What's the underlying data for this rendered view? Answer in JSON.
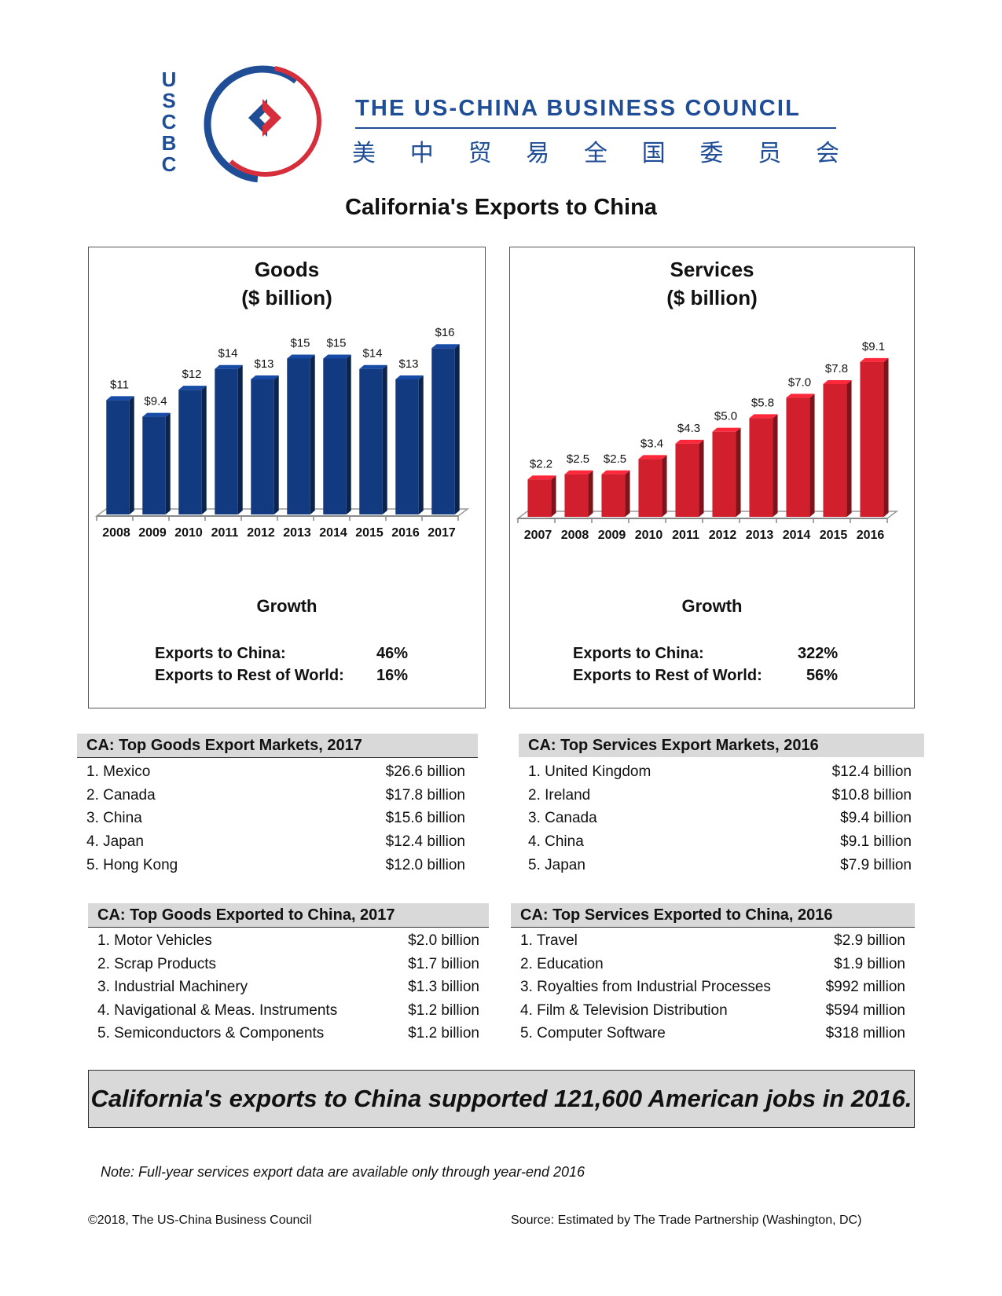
{
  "header": {
    "logo_letters": [
      "U",
      "S",
      "C",
      "B",
      "C"
    ],
    "org_name": "THE US-CHINA BUSINESS COUNCIL",
    "org_name_cn": [
      "美",
      "中",
      "贸",
      "易",
      "全",
      "国",
      "委",
      "员",
      "会"
    ],
    "colors": {
      "brand_blue": "#1f4e96",
      "brand_red": "#d62e3a"
    }
  },
  "page_title": "California's Exports to China",
  "goods_panel": {
    "title_line1": "Goods",
    "title_line2": "($ billion)",
    "growth_heading": "Growth",
    "growth": [
      {
        "label": "Exports to China:",
        "value": "46%"
      },
      {
        "label": "Exports to Rest of World:",
        "value": "16%"
      }
    ]
  },
  "services_panel": {
    "title_line1": "Services",
    "title_line2": "($ billion)",
    "growth_heading": "Growth",
    "growth": [
      {
        "label": "Exports to China:",
        "value": "322%"
      },
      {
        "label": "Exports to Rest of World:",
        "value": "56%"
      }
    ]
  },
  "chart_data": [
    {
      "id": "goods",
      "type": "bar",
      "title": "Goods",
      "ylabel": "($ billion)",
      "categories": [
        "2008",
        "2009",
        "2010",
        "2011",
        "2012",
        "2013",
        "2014",
        "2015",
        "2016",
        "2017"
      ],
      "values": [
        11,
        9.4,
        12,
        14,
        13,
        15,
        15,
        14,
        13,
        16
      ],
      "data_labels": [
        "$11",
        "$9.4",
        "$12",
        "$14",
        "$13",
        "$15",
        "$15",
        "$14",
        "$13",
        "$16"
      ],
      "ylim": [
        0,
        17
      ],
      "grid": false,
      "color": "#123a80"
    },
    {
      "id": "services",
      "type": "bar",
      "title": "Services",
      "ylabel": "($ billion)",
      "categories": [
        "2007",
        "2008",
        "2009",
        "2010",
        "2011",
        "2012",
        "2013",
        "2014",
        "2015",
        "2016"
      ],
      "values": [
        2.2,
        2.5,
        2.5,
        3.4,
        4.3,
        5.0,
        5.8,
        7.0,
        7.8,
        9.1
      ],
      "data_labels": [
        "$2.2",
        "$2.5",
        "$2.5",
        "$3.4",
        "$4.3",
        "$5.0",
        "$5.8",
        "$7.0",
        "$7.8",
        "$9.1"
      ],
      "ylim": [
        0,
        9.6
      ],
      "grid": false,
      "color": "#d21f2d"
    }
  ],
  "tables": {
    "goods_markets": {
      "heading": "CA: Top Goods Export Markets, 2017",
      "rows": [
        {
          "name": "1. Mexico",
          "value": "$26.6 billion"
        },
        {
          "name": "2. Canada",
          "value": "$17.8 billion"
        },
        {
          "name": "3. China",
          "value": "$15.6 billion"
        },
        {
          "name": "4. Japan",
          "value": "$12.4 billion"
        },
        {
          "name": "5. Hong Kong",
          "value": "$12.0 billion"
        }
      ]
    },
    "services_markets": {
      "heading": "CA: Top Services Export Markets, 2016",
      "rows": [
        {
          "name": "1. United Kingdom",
          "value": "$12.4 billion"
        },
        {
          "name": "2. Ireland",
          "value": "$10.8 billion"
        },
        {
          "name": "3. Canada",
          "value": "$9.4 billion"
        },
        {
          "name": "4. China",
          "value": "$9.1 billion"
        },
        {
          "name": "5. Japan",
          "value": "$7.9 billion"
        }
      ]
    },
    "goods_exported": {
      "heading": "CA: Top Goods Exported to China, 2017",
      "rows": [
        {
          "name": "1. Motor Vehicles",
          "value": "$2.0 billion"
        },
        {
          "name": "2. Scrap Products",
          "value": "$1.7 billion"
        },
        {
          "name": "3. Industrial Machinery",
          "value": "$1.3 billion"
        },
        {
          "name": "4. Navigational & Meas. Instruments",
          "value": "$1.2 billion"
        },
        {
          "name": "5. Semiconductors & Components",
          "value": "$1.2 billion"
        }
      ]
    },
    "services_exported": {
      "heading": "CA: Top Services Exported to China, 2016",
      "rows": [
        {
          "name": "1. Travel",
          "value": "$2.9 billion"
        },
        {
          "name": "2. Education",
          "value": "$1.9 billion"
        },
        {
          "name": "3. Royalties from Industrial Processes",
          "value": "$992 million"
        },
        {
          "name": "4. Film & Television Distribution",
          "value": "$594 million"
        },
        {
          "name": "5. Computer Software",
          "value": "$318 million"
        }
      ]
    }
  },
  "jobs_banner": "California's exports to China supported 121,600 American jobs in 2016.",
  "note": "Note: Full-year services export data are available only through year-end 2016",
  "footer": {
    "copyright": "©2018, The US-China Business Council",
    "source": "Source: Estimated by The Trade Partnership (Washington, DC)"
  }
}
